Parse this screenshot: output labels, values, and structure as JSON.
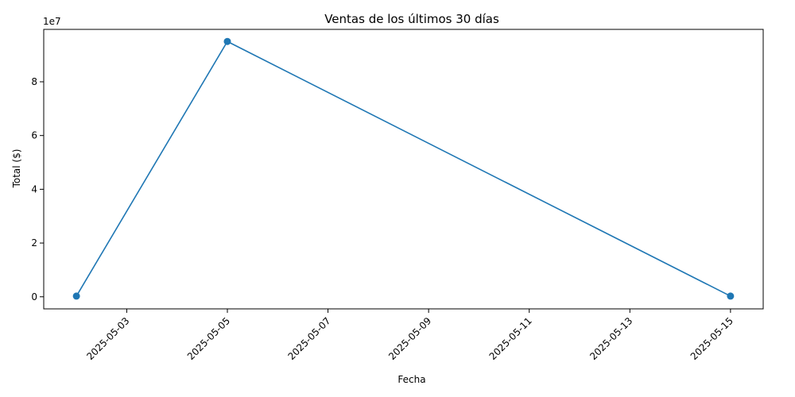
{
  "chart_data": {
    "type": "line",
    "title": "Ventas de los últimos 30 días",
    "xlabel": "Fecha",
    "ylabel": "Total ($)",
    "y_offset_label": "1e7",
    "x": [
      "2025-05-02",
      "2025-05-05",
      "2025-05-15"
    ],
    "series": [
      {
        "values": [
          250000,
          95000000,
          250000
        ],
        "color": "#1f77b4",
        "marker": "circle"
      }
    ],
    "x_ticks": [
      "2025-05-03",
      "2025-05-05",
      "2025-05-07",
      "2025-05-09",
      "2025-05-11",
      "2025-05-13",
      "2025-05-15"
    ],
    "y_ticks": [
      0,
      2,
      4,
      6,
      8
    ],
    "xlim": [
      "2025-05-01T08:24",
      "2025-05-15T15:36"
    ],
    "ylim": [
      -4500000,
      99500000
    ],
    "tick_label_rotation_deg": 45,
    "grid": false,
    "legend": "none"
  }
}
